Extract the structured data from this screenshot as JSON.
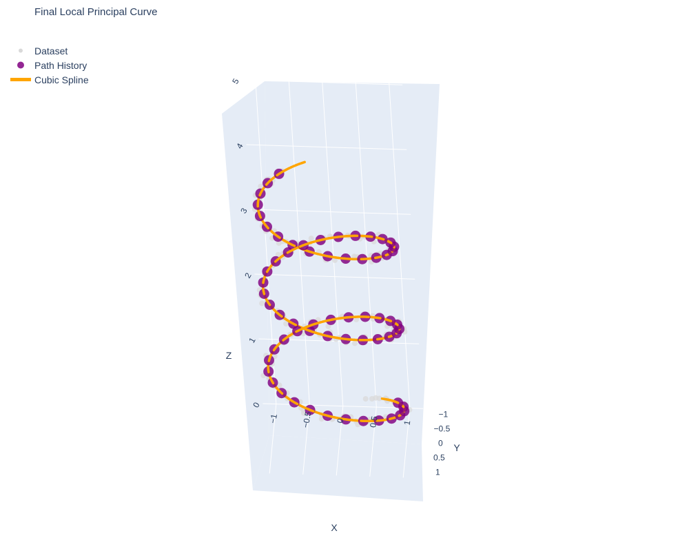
{
  "title": "Final Local Principal Curve",
  "legend": [
    {
      "name": "Dataset",
      "symbol": "dot-small",
      "color": "#d9d9d9"
    },
    {
      "name": "Path History",
      "symbol": "dot",
      "color": "#800080"
    },
    {
      "name": "Cubic Spline",
      "symbol": "line",
      "color": "#ffa500"
    }
  ],
  "chart_data": {
    "type": "scatter3d",
    "title": "Final Local Principal Curve",
    "scene": {
      "xaxis": {
        "title": "X",
        "range": [
          -1.2,
          1.2
        ],
        "tickvals": [
          -1,
          -0.5,
          0,
          0.5,
          1
        ],
        "ticktext": [
          "−1",
          "−0.5",
          "0",
          "0.5",
          "1"
        ]
      },
      "yaxis": {
        "title": "Y",
        "range": [
          -1.2,
          1.2
        ],
        "tickvals": [
          -1,
          -0.5,
          0,
          0.5,
          1
        ],
        "ticktext": [
          "−1",
          "−0.5",
          "0",
          "0.5",
          "1"
        ]
      },
      "zaxis": {
        "title": "Z",
        "range": [
          0,
          5.6
        ],
        "tickvals": [
          0,
          1,
          2,
          3,
          4,
          5
        ],
        "ticktext": [
          "0",
          "1",
          "2",
          "3",
          "4",
          "5"
        ]
      },
      "background": "#e5ecf6",
      "grid": true
    },
    "series": [
      {
        "name": "Dataset",
        "mode": "markers",
        "color": "#d9d9d9",
        "generator": {
          "curve": "helix",
          "x": "cos(t)",
          "y": "sin(t)",
          "z": "t/(2*pi)*1.25 + 0.5",
          "t_range": [
            -1.2,
            16.6
          ],
          "count": 240,
          "noise": 0.12
        }
      },
      {
        "name": "Path History",
        "mode": "markers",
        "color": "#800080",
        "generator": {
          "curve": "helix",
          "x": "cos(t)",
          "y": "sin(t)",
          "z": "t/(2*pi)*1.25 + 0.5",
          "t_range": [
            -0.5,
            16.5
          ],
          "count": 64
        }
      },
      {
        "name": "Cubic Spline",
        "mode": "lines",
        "color": "#ffa500",
        "generator": {
          "curve": "helix",
          "x": "cos(t)",
          "y": "sin(t)",
          "z": "t/(2*pi)*1.25 + 0.5",
          "t_range": [
            -0.9,
            16.95
          ],
          "count": 400
        }
      }
    ]
  }
}
